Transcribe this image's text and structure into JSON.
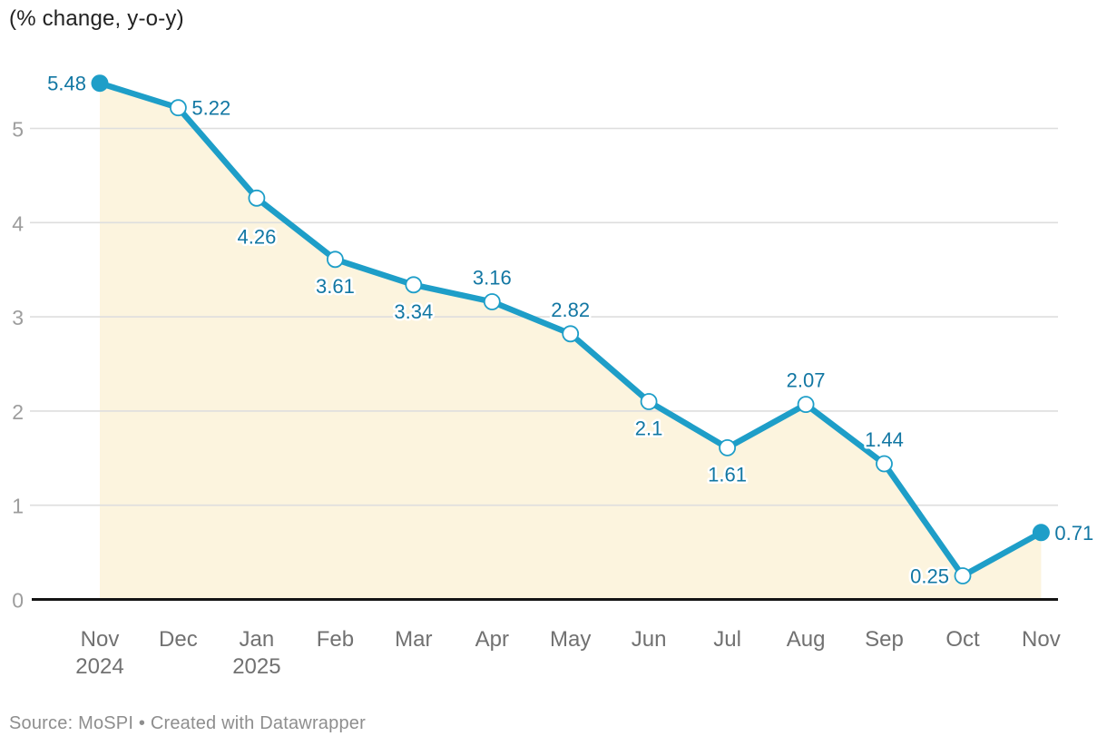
{
  "title": "(% change, y-o-y)",
  "footer": {
    "source_note": "Source: MoSPI • Created with Datawrapper"
  },
  "colors": {
    "line": "#1e9ec8",
    "value_label": "#1277a3",
    "area_fill": "#fcf4de",
    "gridline": "#dedede",
    "axis_line": "#141414",
    "y_tick_label": "#9d9d9d",
    "x_tick_label": "#717171",
    "title_text": "#222222",
    "source_text": "#8e8e8e",
    "marker_fill": "#ffffff"
  },
  "chart_data": {
    "type": "line",
    "title": "(% change, y-o-y)",
    "categories": [
      "Nov",
      "Dec",
      "Jan",
      "Feb",
      "Mar",
      "Apr",
      "May",
      "Jun",
      "Jul",
      "Aug",
      "Sep",
      "Oct",
      "Nov"
    ],
    "category_sublabels": [
      "2024",
      "",
      "2025",
      "",
      "",
      "",
      "",
      "",
      "",
      "",
      "",
      "",
      ""
    ],
    "values": [
      5.48,
      5.22,
      4.26,
      3.61,
      3.34,
      3.16,
      2.82,
      2.1,
      1.61,
      2.07,
      1.44,
      0.25,
      0.71
    ],
    "value_labels": [
      "5.48",
      "5.22",
      "4.26",
      "3.61",
      "3.34",
      "3.16",
      "2.82",
      "2.1",
      "1.61",
      "2.07",
      "1.44",
      "0.25",
      "0.71"
    ],
    "label_placement": [
      "left",
      "right",
      "below-far",
      "below",
      "below",
      "above",
      "above",
      "below",
      "below",
      "above",
      "above",
      "left",
      "right"
    ],
    "yticks": [
      0,
      1,
      2,
      3,
      4,
      5
    ],
    "ylim": [
      0,
      5.6
    ],
    "xlabel": "",
    "ylabel": "% change, y-o-y",
    "grid": "horizontal",
    "legend": "none",
    "area_fill_under_line": true,
    "endpoint_markers": "filled-dot",
    "mid_markers": "open-circle"
  }
}
